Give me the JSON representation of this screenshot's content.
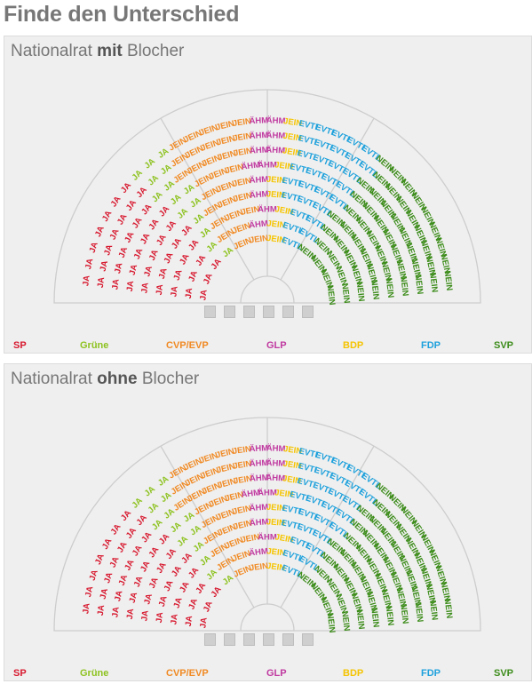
{
  "title": "Finde den Unterschied",
  "panels": [
    {
      "prefix": "Nationalrat ",
      "emphasis": "mit",
      "suffix": " Blocher"
    },
    {
      "prefix": "Nationalrat ",
      "emphasis": "ohne",
      "suffix": " Blocher"
    }
  ],
  "parties": [
    {
      "name": "SP",
      "color": "#d7192f"
    },
    {
      "name": "Grüne",
      "color": "#8dc21f"
    },
    {
      "name": "CVP/EVP",
      "color": "#f08a24"
    },
    {
      "name": "GLP",
      "color": "#c03aa0"
    },
    {
      "name": "BDP",
      "color": "#f5c400"
    },
    {
      "name": "FDP",
      "color": "#1ea1dc"
    },
    {
      "name": "SVP",
      "color": "#3c8c1a"
    }
  ],
  "words": {
    "ja": "JA",
    "jein": "JEIN",
    "aehm": "ÄHM",
    "evtl": "EVTL",
    "nein": "NEIN"
  },
  "seat_groups": [
    {
      "party": "SP",
      "word": "JA",
      "count": 46
    },
    {
      "party": "Grüne",
      "word": "JA",
      "count": 15
    },
    {
      "party": "CVP/EVP",
      "word": "JEIN",
      "count": 31
    },
    {
      "party": "GLP",
      "word": "ÄHM",
      "count": 12
    },
    {
      "party": "BDP",
      "word": "JEIN",
      "count": 9
    },
    {
      "party": "FDP",
      "word": "EVTL",
      "count": 30
    },
    {
      "party": "SVP",
      "word": "NEIN",
      "count": 57
    }
  ],
  "seat_total": 200,
  "controls": 6
}
